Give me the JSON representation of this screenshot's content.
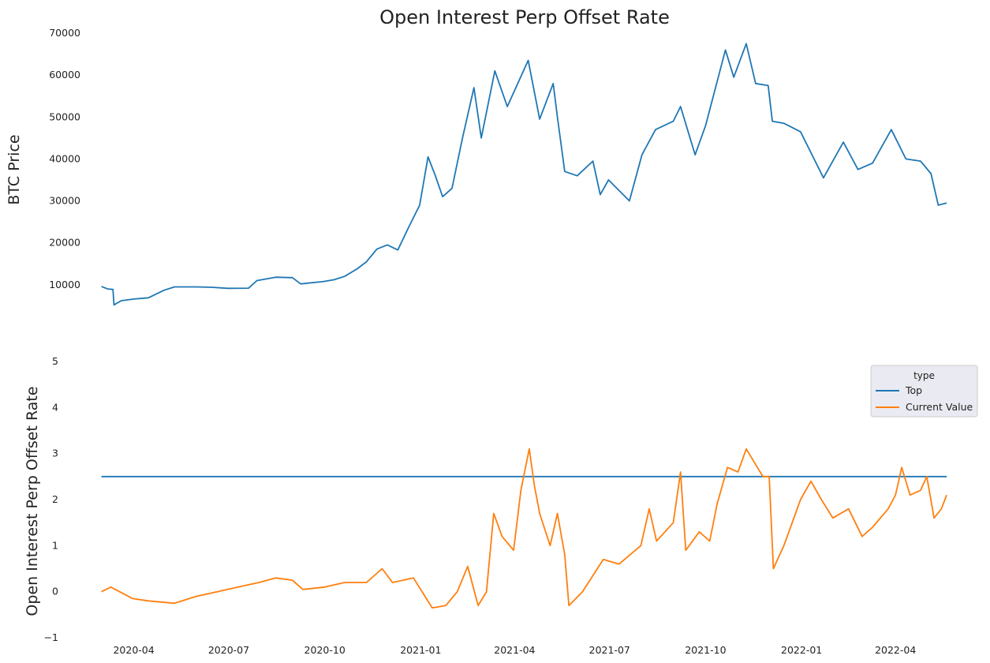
{
  "chart_data": [
    {
      "type": "line",
      "title": "Open Interest Perp Offset Rate",
      "ylabel": "BTC  Price",
      "xlabel": "",
      "ylim": [
        3000,
        70000
      ],
      "xlim": [
        "2020-02-25",
        "2022-05-20"
      ],
      "yticks": [
        10000,
        20000,
        30000,
        40000,
        50000,
        60000,
        70000
      ],
      "grid": false,
      "series": [
        {
          "color": "#1f77b4",
          "points": [
            [
              "2020-03-01",
              9600
            ],
            [
              "2020-03-07",
              9000
            ],
            [
              "2020-03-12",
              8900
            ],
            [
              "2020-03-13",
              5200
            ],
            [
              "2020-03-20",
              6200
            ],
            [
              "2020-04-01",
              6600
            ],
            [
              "2020-04-15",
              6900
            ],
            [
              "2020-04-30",
              8700
            ],
            [
              "2020-05-10",
              9500
            ],
            [
              "2020-05-31",
              9500
            ],
            [
              "2020-06-15",
              9400
            ],
            [
              "2020-06-30",
              9150
            ],
            [
              "2020-07-20",
              9200
            ],
            [
              "2020-07-28",
              11000
            ],
            [
              "2020-08-15",
              11800
            ],
            [
              "2020-08-31",
              11700
            ],
            [
              "2020-09-08",
              10200
            ],
            [
              "2020-09-30",
              10800
            ],
            [
              "2020-10-10",
              11200
            ],
            [
              "2020-10-20",
              12000
            ],
            [
              "2020-11-01",
              13800
            ],
            [
              "2020-11-10",
              15500
            ],
            [
              "2020-11-20",
              18500
            ],
            [
              "2020-11-30",
              19500
            ],
            [
              "2020-12-10",
              18300
            ],
            [
              "2020-12-20",
              23500
            ],
            [
              "2020-12-31",
              29000
            ],
            [
              "2021-01-08",
              40500
            ],
            [
              "2021-01-15",
              36000
            ],
            [
              "2021-01-22",
              31000
            ],
            [
              "2021-01-31",
              33000
            ],
            [
              "2021-02-10",
              45000
            ],
            [
              "2021-02-21",
              57000
            ],
            [
              "2021-02-28",
              45000
            ],
            [
              "2021-03-13",
              61000
            ],
            [
              "2021-03-25",
              52500
            ],
            [
              "2021-04-14",
              63500
            ],
            [
              "2021-04-25",
              49500
            ],
            [
              "2021-05-08",
              58000
            ],
            [
              "2021-05-12",
              50000
            ],
            [
              "2021-05-19",
              37000
            ],
            [
              "2021-05-31",
              36000
            ],
            [
              "2021-06-15",
              39500
            ],
            [
              "2021-06-22",
              31500
            ],
            [
              "2021-06-30",
              35000
            ],
            [
              "2021-07-20",
              30000
            ],
            [
              "2021-08-01",
              41000
            ],
            [
              "2021-08-14",
              47000
            ],
            [
              "2021-08-31",
              49000
            ],
            [
              "2021-09-07",
              52500
            ],
            [
              "2021-09-21",
              41000
            ],
            [
              "2021-10-01",
              48000
            ],
            [
              "2021-10-20",
              66000
            ],
            [
              "2021-10-28",
              59500
            ],
            [
              "2021-11-09",
              67500
            ],
            [
              "2021-11-18",
              58000
            ],
            [
              "2021-11-30",
              57500
            ],
            [
              "2021-12-04",
              49000
            ],
            [
              "2021-12-15",
              48500
            ],
            [
              "2021-12-31",
              46500
            ],
            [
              "2022-01-10",
              41500
            ],
            [
              "2022-01-22",
              35500
            ],
            [
              "2022-02-10",
              44000
            ],
            [
              "2022-02-24",
              37500
            ],
            [
              "2022-03-10",
              39000
            ],
            [
              "2022-03-28",
              47000
            ],
            [
              "2022-04-11",
              40000
            ],
            [
              "2022-04-25",
              39500
            ],
            [
              "2022-05-05",
              36500
            ],
            [
              "2022-05-12",
              29000
            ],
            [
              "2022-05-20",
              29500
            ]
          ]
        }
      ]
    },
    {
      "type": "line",
      "title": "",
      "ylabel": "Open Interest Perp Offset Rate",
      "xlabel": "",
      "ylim": [
        -1,
        5
      ],
      "xlim": [
        "2020-02-25",
        "2022-05-20"
      ],
      "yticks": [
        -1,
        0,
        1,
        2,
        3,
        4,
        5
      ],
      "xticks": [
        "2020-04",
        "2020-07",
        "2020-10",
        "2021-01",
        "2021-04",
        "2021-07",
        "2021-10",
        "2022-01",
        "2022-04"
      ],
      "grid": false,
      "legend": {
        "title": "type",
        "position": "upper-right"
      },
      "series": [
        {
          "name": "Top",
          "color": "#1f77b4",
          "points": [
            [
              "2020-03-01",
              2.5
            ],
            [
              "2022-05-20",
              2.5
            ]
          ]
        },
        {
          "name": "Current Value",
          "color": "#ff7f0e",
          "points": [
            [
              "2020-03-01",
              0.0
            ],
            [
              "2020-03-10",
              0.1
            ],
            [
              "2020-03-31",
              -0.15
            ],
            [
              "2020-04-15",
              -0.2
            ],
            [
              "2020-05-10",
              -0.25
            ],
            [
              "2020-05-31",
              -0.1
            ],
            [
              "2020-06-20",
              0.0
            ],
            [
              "2020-07-10",
              0.1
            ],
            [
              "2020-07-30",
              0.2
            ],
            [
              "2020-08-15",
              0.3
            ],
            [
              "2020-08-31",
              0.25
            ],
            [
              "2020-09-10",
              0.05
            ],
            [
              "2020-10-01",
              0.1
            ],
            [
              "2020-10-20",
              0.2
            ],
            [
              "2020-11-10",
              0.2
            ],
            [
              "2020-11-25",
              0.5
            ],
            [
              "2020-12-05",
              0.2
            ],
            [
              "2020-12-25",
              0.3
            ],
            [
              "2021-01-05",
              -0.1
            ],
            [
              "2021-01-12",
              -0.35
            ],
            [
              "2021-01-25",
              -0.3
            ],
            [
              "2021-02-05",
              0.0
            ],
            [
              "2021-02-15",
              0.55
            ],
            [
              "2021-02-25",
              -0.3
            ],
            [
              "2021-03-05",
              0.0
            ],
            [
              "2021-03-12",
              1.7
            ],
            [
              "2021-03-20",
              1.2
            ],
            [
              "2021-03-31",
              0.9
            ],
            [
              "2021-04-07",
              2.2
            ],
            [
              "2021-04-15",
              3.1
            ],
            [
              "2021-04-20",
              2.3
            ],
            [
              "2021-04-25",
              1.7
            ],
            [
              "2021-05-05",
              1.0
            ],
            [
              "2021-05-12",
              1.7
            ],
            [
              "2021-05-19",
              0.8
            ],
            [
              "2021-05-23",
              -0.3
            ],
            [
              "2021-06-05",
              0.0
            ],
            [
              "2021-06-25",
              0.7
            ],
            [
              "2021-07-10",
              0.6
            ],
            [
              "2021-07-31",
              1.0
            ],
            [
              "2021-08-08",
              1.8
            ],
            [
              "2021-08-15",
              1.1
            ],
            [
              "2021-08-31",
              1.5
            ],
            [
              "2021-09-07",
              2.6
            ],
            [
              "2021-09-12",
              0.9
            ],
            [
              "2021-09-25",
              1.3
            ],
            [
              "2021-10-05",
              1.1
            ],
            [
              "2021-10-12",
              1.9
            ],
            [
              "2021-10-22",
              2.7
            ],
            [
              "2021-11-01",
              2.6
            ],
            [
              "2021-11-09",
              3.1
            ],
            [
              "2021-11-25",
              2.5
            ],
            [
              "2021-12-01",
              2.5
            ],
            [
              "2021-12-05",
              0.5
            ],
            [
              "2021-12-15",
              1.0
            ],
            [
              "2021-12-31",
              2.0
            ],
            [
              "2022-01-10",
              2.4
            ],
            [
              "2022-01-20",
              2.0
            ],
            [
              "2022-01-31",
              1.6
            ],
            [
              "2022-02-15",
              1.8
            ],
            [
              "2022-02-28",
              1.2
            ],
            [
              "2022-03-10",
              1.4
            ],
            [
              "2022-03-25",
              1.8
            ],
            [
              "2022-04-01",
              2.1
            ],
            [
              "2022-04-07",
              2.7
            ],
            [
              "2022-04-15",
              2.1
            ],
            [
              "2022-04-25",
              2.2
            ],
            [
              "2022-05-01",
              2.5
            ],
            [
              "2022-05-08",
              1.6
            ],
            [
              "2022-05-15",
              1.8
            ],
            [
              "2022-05-20",
              2.1
            ]
          ]
        }
      ]
    }
  ]
}
